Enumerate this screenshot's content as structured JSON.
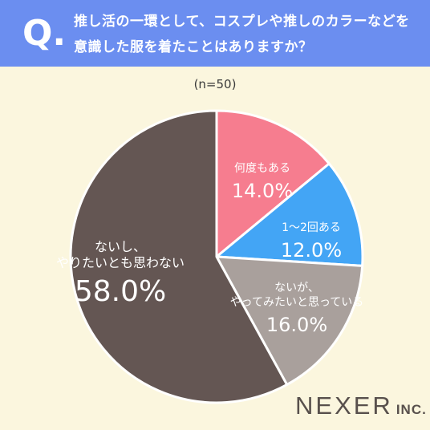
{
  "header": {
    "q_mark": "Q.",
    "question_line1": "推し活の一環として、コスプレや推しのカラーなどを",
    "question_line2": "意識した服を着たことはありますか？"
  },
  "sample_label": "(n=50)",
  "chart_data": {
    "type": "pie",
    "title": "推し活の一環として、コスプレや推しのカラーなどを意識した服を着たことはありますか？",
    "sample_size": "(n=50)",
    "slices": [
      {
        "label": "何度もある",
        "label_lines": [
          "何度もある"
        ],
        "value": 14.0,
        "display": "14.0%",
        "color": "#f67d8f"
      },
      {
        "label": "1〜2回ある",
        "label_lines": [
          "1〜2回ある"
        ],
        "value": 12.0,
        "display": "12.0%",
        "color": "#43a5f5"
      },
      {
        "label": "ないが、やってみたいと思っている",
        "label_lines": [
          "ないが、",
          "やってみたいと思っている"
        ],
        "value": 16.0,
        "display": "16.0%",
        "color": "#a9a09c"
      },
      {
        "label": "ないし、やりたいとも思わない",
        "label_lines": [
          "ないし、",
          "やりたいとも思わない"
        ],
        "value": 58.0,
        "display": "58.0%",
        "color": "#645653"
      }
    ],
    "start_angle": "12 o'clock",
    "direction": "clockwise"
  },
  "brand": {
    "name": "NEXER",
    "suffix": "INC."
  }
}
